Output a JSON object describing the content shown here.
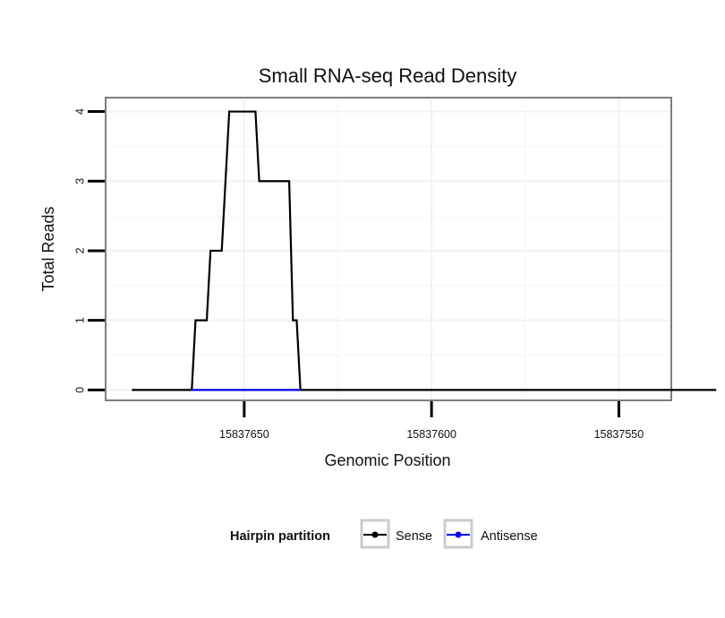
{
  "chart_data": {
    "type": "line",
    "title": "Small RNA-seq Read Density",
    "xlabel": "Genomic Position",
    "ylabel": "Total Reads",
    "x_reversed": true,
    "xlim": [
      15837536,
      15837687
    ],
    "ylim": [
      -0.15,
      4.2
    ],
    "x_ticks": [
      15837650,
      15837600,
      15837550
    ],
    "x_tick_labels": [
      "15837650",
      "15837600",
      "15837550"
    ],
    "y_ticks": [
      0,
      1,
      2,
      3,
      4
    ],
    "y_tick_labels": [
      "0",
      "1",
      "2",
      "3",
      "4"
    ],
    "grid": true,
    "legend": {
      "title": "Hairpin partition",
      "position": "bottom",
      "entries": [
        {
          "name": "Sense",
          "color": "#000000"
        },
        {
          "name": "Antisense",
          "color": "#0000ff"
        }
      ]
    },
    "series": [
      {
        "name": "Sense",
        "color": "#000000",
        "points": [
          [
            15837680,
            0
          ],
          [
            15837664,
            0
          ],
          [
            15837663,
            1
          ],
          [
            15837660,
            1
          ],
          [
            15837659,
            2
          ],
          [
            15837656,
            2
          ],
          [
            15837654,
            4
          ],
          [
            15837647,
            4
          ],
          [
            15837646,
            3
          ],
          [
            15837638,
            3
          ],
          [
            15837637,
            1
          ],
          [
            15837636,
            1
          ],
          [
            15837635,
            0
          ],
          [
            15837524,
            0
          ]
        ]
      },
      {
        "name": "Antisense",
        "color": "#0000ff",
        "points": [
          [
            15837664,
            0
          ],
          [
            15837635,
            0
          ]
        ]
      }
    ]
  }
}
